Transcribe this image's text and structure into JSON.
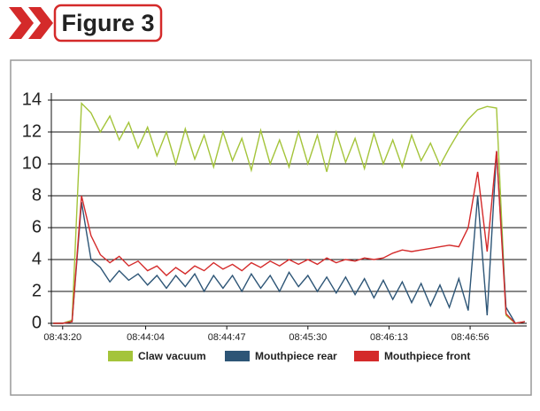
{
  "chart_data": {
    "type": "line",
    "title": "Figure 3",
    "x": [
      31395,
      31400,
      31405,
      31410,
      31415,
      31420,
      31425,
      31430,
      31435,
      31440,
      31445,
      31450,
      31455,
      31460,
      31465,
      31470,
      31475,
      31480,
      31485,
      31490,
      31495,
      31500,
      31505,
      31510,
      31515,
      31520,
      31525,
      31530,
      31535,
      31540,
      31545,
      31550,
      31555,
      31560,
      31565,
      31570,
      31575,
      31580,
      31585,
      31590,
      31595,
      31600,
      31605,
      31610,
      31615,
      31620,
      31625,
      31630,
      31635,
      31640,
      31645
    ],
    "series": [
      {
        "name": "Claw vacuum",
        "color": "#a4c43a",
        "values": [
          0,
          0,
          0.2,
          13.8,
          13.2,
          12.0,
          13.0,
          11.5,
          12.6,
          11.0,
          12.3,
          10.5,
          12.0,
          10.0,
          12.2,
          10.3,
          11.8,
          9.8,
          12.0,
          10.2,
          11.6,
          9.6,
          12.1,
          10.0,
          11.5,
          9.8,
          12.0,
          10.0,
          11.8,
          9.5,
          12.0,
          10.1,
          11.6,
          9.7,
          11.9,
          10.0,
          11.5,
          9.8,
          11.8,
          10.2,
          11.3,
          9.9,
          11.0,
          12.0,
          12.8,
          13.4,
          13.6,
          13.5,
          0.5,
          0,
          0.1
        ]
      },
      {
        "name": "Mouthpiece rear",
        "color": "#2d5576",
        "values": [
          0,
          0,
          0.1,
          7.6,
          4.0,
          3.5,
          2.6,
          3.3,
          2.7,
          3.1,
          2.4,
          3.0,
          2.2,
          3.0,
          2.3,
          3.1,
          2.0,
          3.0,
          2.2,
          3.0,
          2.0,
          3.1,
          2.2,
          3.0,
          2.0,
          3.2,
          2.3,
          3.0,
          2.0,
          2.9,
          1.9,
          2.9,
          1.8,
          2.8,
          1.6,
          2.7,
          1.5,
          2.6,
          1.3,
          2.5,
          1.1,
          2.4,
          1.0,
          2.8,
          0.8,
          8.0,
          0.5,
          10.8,
          1.0,
          0,
          0.1
        ]
      },
      {
        "name": "Mouthpiece front",
        "color": "#d42a2a",
        "values": [
          0,
          0,
          0.1,
          8.0,
          5.5,
          4.3,
          3.8,
          4.2,
          3.6,
          3.9,
          3.3,
          3.6,
          3.0,
          3.5,
          3.1,
          3.6,
          3.3,
          3.8,
          3.4,
          3.7,
          3.3,
          3.8,
          3.5,
          3.9,
          3.6,
          4.0,
          3.7,
          4.0,
          3.7,
          4.1,
          3.8,
          4.0,
          3.9,
          4.1,
          4.0,
          4.1,
          4.4,
          4.6,
          4.5,
          4.6,
          4.7,
          4.8,
          4.9,
          4.8,
          6.0,
          9.5,
          4.5,
          10.8,
          0.6,
          0,
          0.1
        ]
      }
    ],
    "xlim": [
      31394,
      31646
    ],
    "xticks": [
      {
        "value": 31400,
        "label": "08:43:20"
      },
      {
        "value": 31444,
        "label": "08:44:04"
      },
      {
        "value": 31487,
        "label": "08:44:47"
      },
      {
        "value": 31530,
        "label": "08:45:30"
      },
      {
        "value": 31573,
        "label": "08:46:13"
      },
      {
        "value": 31616,
        "label": "08:46:56"
      }
    ],
    "ylim": [
      0,
      14
    ],
    "yticks": [
      0,
      2,
      4,
      6,
      8,
      10,
      12,
      14
    ],
    "grid": true
  }
}
